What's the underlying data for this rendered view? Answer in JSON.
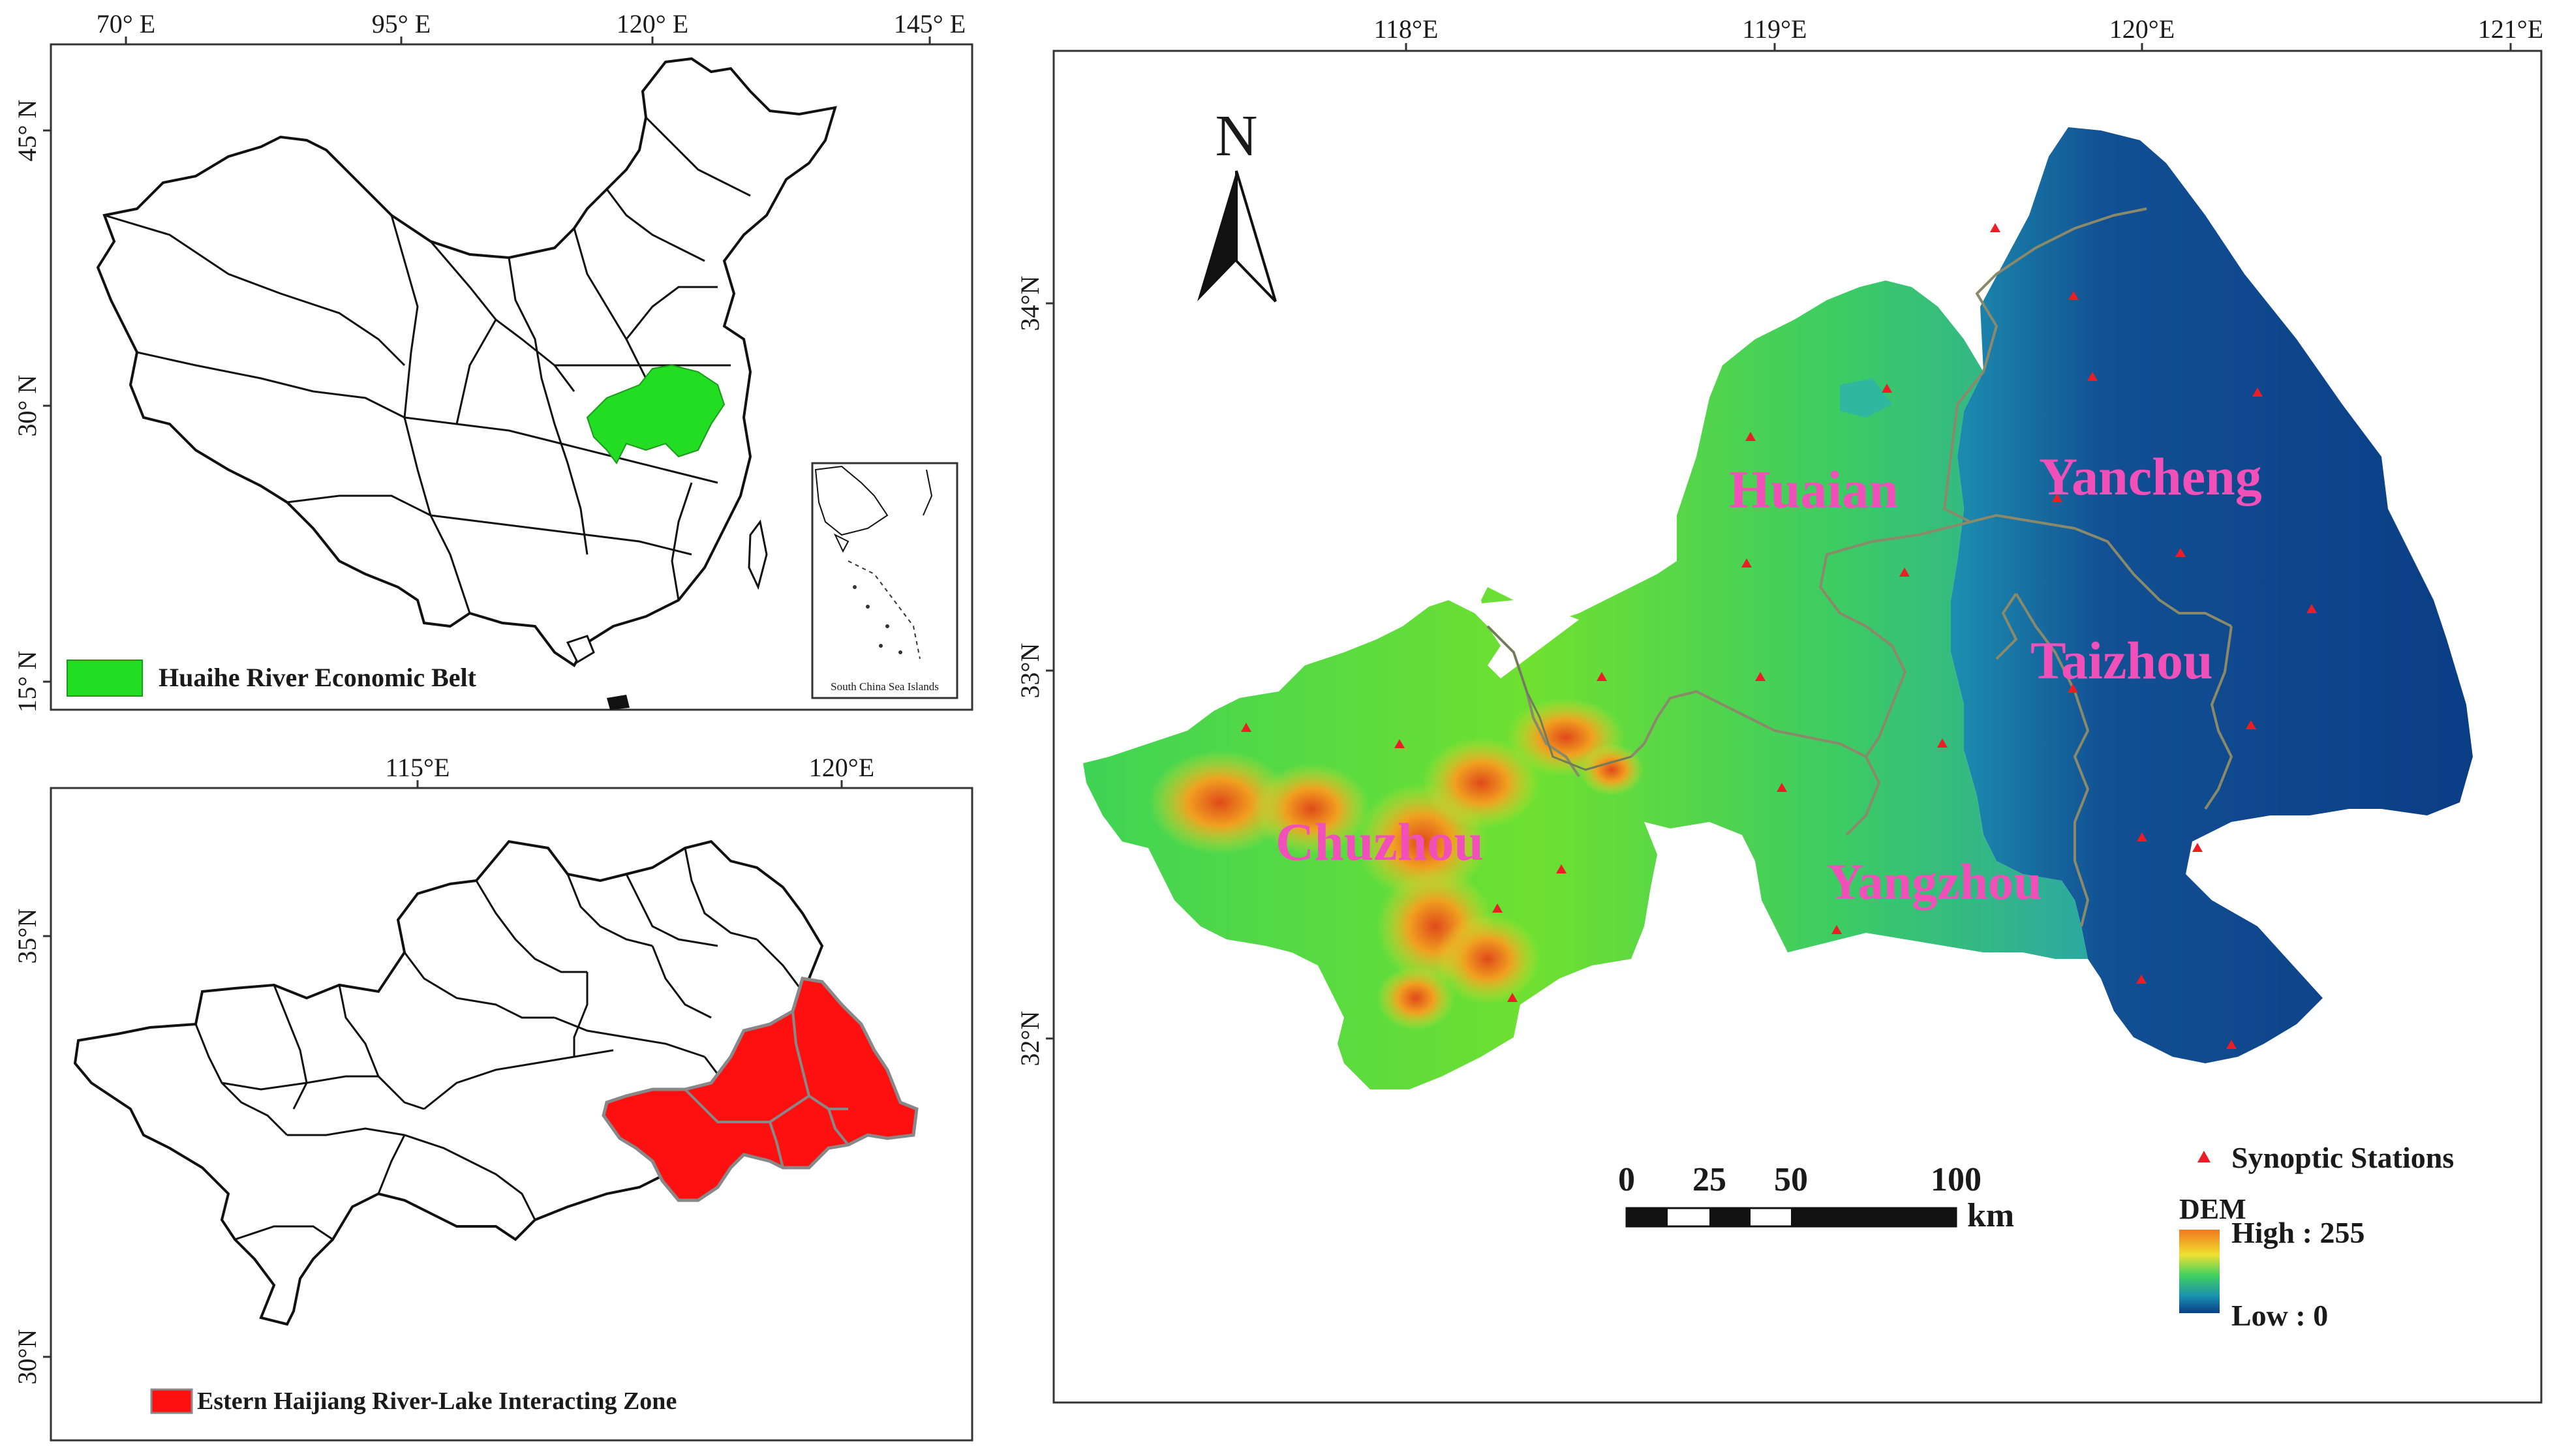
{
  "map_china": {
    "lon_ticks": [
      "70° E",
      "95° E",
      "120° E",
      "145° E"
    ],
    "lat_ticks": [
      "45° N",
      "30° N",
      "15° N"
    ],
    "inset_label": "South China Sea Islands",
    "legend_label": "Huaihe River Economic Belt",
    "legend_color": "#22dd22"
  },
  "map_belt": {
    "lon_ticks": [
      "115°E",
      "120°E"
    ],
    "lat_ticks": [
      "35°N",
      "30°N"
    ],
    "legend_label": "Estern Haijiang River-Lake Interacting Zone",
    "legend_color": "#ff1010"
  },
  "map_dem": {
    "lon_ticks": [
      "118°E",
      "119°E",
      "120°E",
      "121°E"
    ],
    "lat_ticks": [
      "34°N",
      "33°N",
      "32°N"
    ],
    "north_label": "N",
    "cities": [
      "Huaian",
      "Yancheng",
      "Taizhou",
      "Chuzhou",
      "Yangzhou"
    ],
    "scale_labels": [
      "0",
      "25",
      "50",
      "100"
    ],
    "scale_unit": "km",
    "station_legend": "Synoptic Stations",
    "dem_title": "DEM",
    "dem_high": "High : 255",
    "dem_low": "Low : 0",
    "station_color": "#ee1c24"
  }
}
